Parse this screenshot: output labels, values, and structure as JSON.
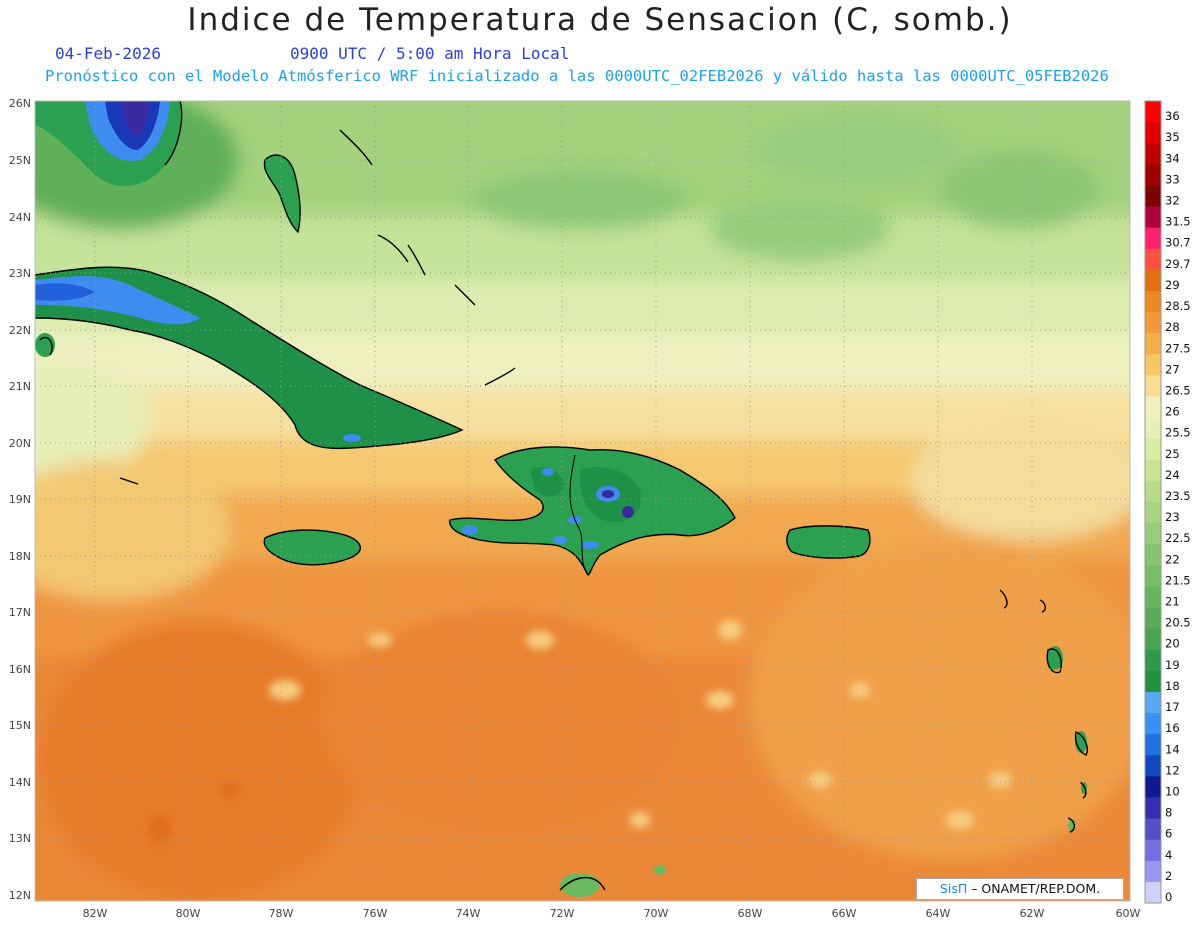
{
  "header": {
    "title": "Indice de Temperatura de Sensacion (C, somb.)",
    "date": "04-Feb-2026",
    "time": "0900 UTC / 5:00 am Hora Local",
    "model_line": "Pronóstico con el Modelo Atmósferico WRF inicializado a las 0000UTC_02FEB2026 y válido hasta las  0000UTC_05FEB2026"
  },
  "axes": {
    "lat_labels": [
      "26N",
      "25N",
      "24N",
      "23N",
      "22N",
      "21N",
      "20N",
      "19N",
      "18N",
      "17N",
      "16N",
      "15N",
      "14N",
      "13N",
      "12N"
    ],
    "lon_labels": [
      "82W",
      "80W",
      "78W",
      "76W",
      "74W",
      "72W",
      "70W",
      "68W",
      "66W",
      "64W",
      "62W",
      "60W"
    ]
  },
  "colorbar": {
    "labels": [
      "36",
      "35",
      "34",
      "33",
      "32",
      "31.5",
      "30.7",
      "29.7",
      "29",
      "28.5",
      "28",
      "27.5",
      "27",
      "26.5",
      "26",
      "25.5",
      "25",
      "24",
      "23.5",
      "23",
      "22.5",
      "22",
      "21.5",
      "21",
      "20.5",
      "20",
      "19",
      "18",
      "17",
      "16",
      "14",
      "12",
      "10",
      "8",
      "6",
      "4",
      "2",
      "0"
    ],
    "colors": [
      "#ff0000",
      "#e00000",
      "#c00000",
      "#a00000",
      "#800000",
      "#b00040",
      "#ff2070",
      "#ff5040",
      "#e07010",
      "#ea8a20",
      "#f09a38",
      "#f5b048",
      "#f8c860",
      "#f8dc90",
      "#f5eec0",
      "#e8f0b8",
      "#d8eca0",
      "#c8e490",
      "#b8dc88",
      "#a8d480",
      "#98cc78",
      "#88c470",
      "#78bc68",
      "#68b460",
      "#58ac58",
      "#48a450",
      "#30984a",
      "#209040",
      "#58a8f0",
      "#3890f0",
      "#2070e0",
      "#1048c0",
      "#101890",
      "#3030b0",
      "#5050c8",
      "#7070e0",
      "#9898f0",
      "#d0d0f8"
    ]
  },
  "credit": {
    "brand": "SisΠ",
    "org": " – ONAMET/REP.DOM."
  }
}
